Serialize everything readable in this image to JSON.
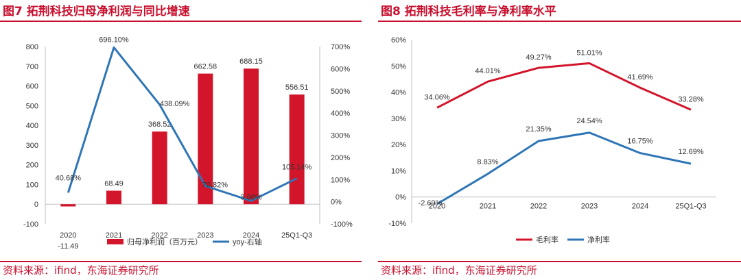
{
  "colors": {
    "accent": "#C8102E",
    "bar": "#D2152B",
    "line_blue": "#2E75B6",
    "line_red": "#D2152B",
    "axis_text": "#333333"
  },
  "panels": [
    {
      "title": "图7  拓荆科技归母净利润与同比增速",
      "source": "资料来源：ifind，东海证券研究所"
    },
    {
      "title": "图8  拓荆科技毛利率与净利率水平",
      "source": "资料来源：ifind，东海证券研究所"
    }
  ],
  "chart_data": [
    {
      "type": "bar+line",
      "categories": [
        "2020",
        "2021",
        "2022",
        "2023",
        "2024",
        "25Q1-Q3"
      ],
      "bar_series": {
        "name": "归母净利润（百万元）",
        "values": [
          -11.49,
          68.49,
          368.52,
          662.58,
          688.15,
          556.51
        ],
        "labels": [
          "-11.49",
          "68.49",
          "368.52",
          "662.58",
          "688.15",
          "556.51"
        ]
      },
      "line_series": {
        "name": "yoy-右轴",
        "values": [
          40.68,
          696.1,
          438.09,
          70.82,
          3.86,
          105.14
        ],
        "labels": [
          "40.68%",
          "696.10%",
          "438.09%",
          "70.82%",
          "3.86%",
          "105.14%"
        ]
      },
      "y_left": {
        "min": -100,
        "max": 800,
        "ticks": [
          "-100",
          "0",
          "100",
          "200",
          "300",
          "400",
          "500",
          "600",
          "700",
          "800"
        ]
      },
      "y_right": {
        "min": -100,
        "max": 700,
        "ticks": [
          "-100%",
          "0%",
          "100%",
          "200%",
          "300%",
          "400%",
          "500%",
          "600%",
          "700%"
        ]
      },
      "legend": [
        "归母净利润（百万元）",
        "yoy-右轴"
      ],
      "legend_position": "bottom"
    },
    {
      "type": "line",
      "categories": [
        "2020",
        "2021",
        "2022",
        "2023",
        "2024",
        "25Q1-Q3"
      ],
      "series": [
        {
          "name": "毛利率",
          "values": [
            34.06,
            44.01,
            49.27,
            51.01,
            41.69,
            33.28
          ],
          "labels": [
            "34.06%",
            "44.01%",
            "49.27%",
            "51.01%",
            "41.69%",
            "33.28%"
          ]
        },
        {
          "name": "净利率",
          "values": [
            -2.69,
            8.83,
            21.35,
            24.54,
            16.75,
            12.69
          ],
          "labels": [
            "-2.69%",
            "8.83%",
            "21.35%",
            "24.54%",
            "16.75%",
            "12.69%"
          ]
        }
      ],
      "y_axis": {
        "min": -10,
        "max": 60,
        "ticks": [
          "-10%",
          "0%",
          "10%",
          "20%",
          "30%",
          "40%",
          "50%",
          "60%"
        ]
      },
      "legend": [
        "毛利率",
        "净利率"
      ],
      "legend_position": "bottom"
    }
  ]
}
